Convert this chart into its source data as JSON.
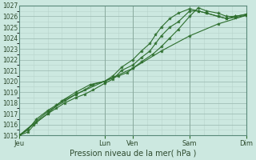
{
  "title": "",
  "xlabel": "Pression niveau de la mer( hPa )",
  "ylabel": "",
  "background_color": "#cce8e0",
  "plot_bg_color": "#cce8e0",
  "grid_color": "#b8d4cc",
  "grid_color_major": "#a0bdb5",
  "line_color": "#2d6e2d",
  "ylim": [
    1015,
    1027
  ],
  "xlim": [
    0,
    8
  ],
  "yticks": [
    1015,
    1016,
    1017,
    1018,
    1019,
    1020,
    1021,
    1022,
    1023,
    1024,
    1025,
    1026,
    1027
  ],
  "x_day_labels": [
    "Jeu",
    "Lun",
    "Ven",
    "Sam",
    "Dim"
  ],
  "x_day_positions": [
    0,
    3.0,
    4.0,
    6.0,
    8.0
  ],
  "series": [
    {
      "x": [
        0,
        0.3,
        0.6,
        1.0,
        1.3,
        1.6,
        2.0,
        2.3,
        2.6,
        3.0,
        3.3,
        3.6,
        4.0,
        4.3,
        4.6,
        4.8,
        5.0,
        5.3,
        5.6,
        6.0,
        6.3,
        6.6,
        7.0,
        7.3,
        7.6,
        8.0
      ],
      "y": [
        1015.0,
        1015.3,
        1016.2,
        1017.0,
        1017.5,
        1018.0,
        1018.5,
        1018.8,
        1019.2,
        1019.8,
        1020.2,
        1021.0,
        1021.5,
        1022.2,
        1022.8,
        1023.5,
        1024.2,
        1025.0,
        1025.5,
        1026.5,
        1026.5,
        1026.3,
        1026.0,
        1025.8,
        1026.0,
        1026.2
      ]
    },
    {
      "x": [
        0,
        0.3,
        0.6,
        1.0,
        1.3,
        1.6,
        2.0,
        2.3,
        2.6,
        3.0,
        3.3,
        3.6,
        4.0,
        4.3,
        4.6,
        4.8,
        5.0,
        5.3,
        5.6,
        6.0,
        6.3,
        6.6,
        7.0,
        7.3,
        7.6,
        8.0
      ],
      "y": [
        1015.0,
        1015.5,
        1016.5,
        1017.3,
        1017.8,
        1018.3,
        1018.8,
        1019.2,
        1019.7,
        1020.0,
        1020.5,
        1021.3,
        1022.0,
        1022.8,
        1023.5,
        1024.3,
        1025.0,
        1025.8,
        1026.3,
        1026.7,
        1026.5,
        1026.3,
        1026.0,
        1025.8,
        1025.9,
        1026.1
      ]
    },
    {
      "x": [
        0,
        0.5,
        1.0,
        1.5,
        2.0,
        2.5,
        3.0,
        3.5,
        3.8,
        4.0,
        4.3,
        4.7,
        5.0,
        5.3,
        5.6,
        6.0,
        6.3,
        6.6,
        7.0,
        7.3,
        7.6,
        8.0
      ],
      "y": [
        1015.0,
        1016.0,
        1017.0,
        1018.2,
        1019.0,
        1019.7,
        1020.0,
        1020.5,
        1020.8,
        1021.2,
        1021.8,
        1022.5,
        1023.2,
        1024.0,
        1024.8,
        1026.0,
        1026.8,
        1026.5,
        1026.3,
        1026.0,
        1026.0,
        1026.2
      ]
    },
    {
      "x": [
        0,
        1.0,
        2.0,
        3.0,
        4.0,
        5.0,
        6.0,
        7.0,
        8.0
      ],
      "y": [
        1015.0,
        1017.2,
        1018.8,
        1020.0,
        1021.2,
        1022.8,
        1024.2,
        1025.3,
        1026.1
      ]
    }
  ],
  "tick_fontsize": 5.5,
  "label_fontsize": 7,
  "xtick_fontsize": 6.0
}
